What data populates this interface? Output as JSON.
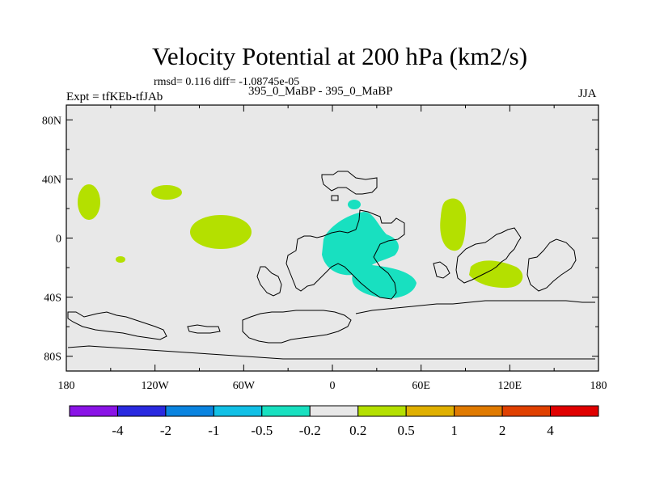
{
  "title": "Velocity Potential at 200 hPa (km2/s)",
  "stats_line": "rmsd= 0.116 diff= -1.08745e-05",
  "expt_line": "Expt = tfKEb-tfJAb",
  "cases_line": "395_0_MaBP - 395_0_MaBP",
  "season": "JJA",
  "x_ticks": [
    {
      "label": "180",
      "lon": -180
    },
    {
      "label": "120W",
      "lon": -120
    },
    {
      "label": "60W",
      "lon": -60
    },
    {
      "label": "0",
      "lon": 0
    },
    {
      "label": "60E",
      "lon": 60
    },
    {
      "label": "120E",
      "lon": 120
    },
    {
      "label": "180",
      "lon": 180
    }
  ],
  "y_ticks": [
    {
      "label": "80N",
      "lat": 80
    },
    {
      "label": "40N",
      "lat": 40
    },
    {
      "label": "0",
      "lat": 0
    },
    {
      "label": "40S",
      "lat": -40
    },
    {
      "label": "80S",
      "lat": -80
    }
  ],
  "colorbar": {
    "colors": [
      "#8a14e6",
      "#2a2ae0",
      "#0a84e0",
      "#12c0e6",
      "#18e0c0",
      "#e8e8e8",
      "#b4e000",
      "#e0b000",
      "#e07a00",
      "#e04000",
      "#e00000"
    ],
    "labels": [
      "-4",
      "-2",
      "-1",
      "-0.5",
      "-0.2",
      "0.2",
      "0.5",
      "1",
      "2",
      "4"
    ]
  },
  "colors": {
    "background": "#e8e8e8",
    "positive_fill": "#b4e000",
    "negative_fill": "#18e0c0",
    "coastline": "#000000"
  }
}
